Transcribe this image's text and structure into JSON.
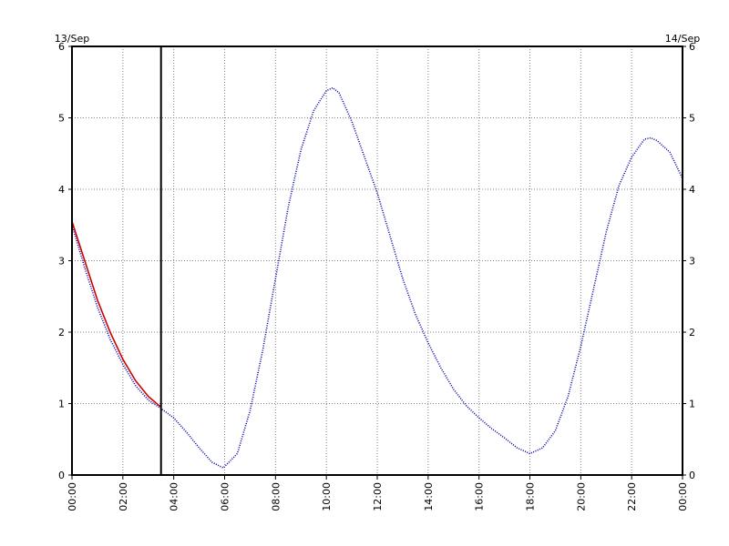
{
  "chart_data": {
    "type": "line",
    "x_unit": "hours",
    "xlim": [
      0,
      24
    ],
    "ylim": [
      0,
      6
    ],
    "grid": true,
    "date_labels": {
      "start": "13/Sep",
      "end": "14/Sep"
    },
    "x_ticks": [
      0,
      2,
      4,
      6,
      8,
      10,
      12,
      14,
      16,
      18,
      20,
      22,
      24
    ],
    "x_tick_labels": [
      "00:00",
      "02:00",
      "04:00",
      "06:00",
      "08:00",
      "10:00",
      "12:00",
      "14:00",
      "16:00",
      "18:00",
      "20:00",
      "22:00",
      "00:00"
    ],
    "y_ticks": [
      0,
      1,
      2,
      3,
      4,
      5,
      6
    ],
    "y_tick_labels": [
      "0",
      "1",
      "2",
      "3",
      "4",
      "5",
      "6"
    ],
    "current_time_marker": 3.5,
    "series": [
      {
        "color": "#0000aa",
        "style": "dotted",
        "points": [
          [
            0.0,
            3.5
          ],
          [
            0.5,
            2.9
          ],
          [
            1.0,
            2.35
          ],
          [
            1.5,
            1.9
          ],
          [
            2.0,
            1.55
          ],
          [
            2.5,
            1.25
          ],
          [
            3.0,
            1.05
          ],
          [
            3.5,
            0.93
          ],
          [
            4.0,
            0.8
          ],
          [
            4.5,
            0.6
          ],
          [
            5.0,
            0.38
          ],
          [
            5.5,
            0.18
          ],
          [
            5.95,
            0.1
          ],
          [
            6.5,
            0.3
          ],
          [
            7.0,
            0.9
          ],
          [
            7.5,
            1.75
          ],
          [
            8.0,
            2.75
          ],
          [
            8.5,
            3.75
          ],
          [
            9.0,
            4.55
          ],
          [
            9.5,
            5.1
          ],
          [
            10.0,
            5.38
          ],
          [
            10.25,
            5.42
          ],
          [
            10.5,
            5.35
          ],
          [
            11.0,
            4.95
          ],
          [
            11.5,
            4.45
          ],
          [
            12.0,
            3.95
          ],
          [
            12.5,
            3.35
          ],
          [
            13.0,
            2.75
          ],
          [
            13.5,
            2.25
          ],
          [
            14.0,
            1.85
          ],
          [
            14.5,
            1.5
          ],
          [
            15.0,
            1.2
          ],
          [
            15.5,
            0.97
          ],
          [
            16.0,
            0.8
          ],
          [
            16.5,
            0.65
          ],
          [
            17.0,
            0.52
          ],
          [
            17.5,
            0.38
          ],
          [
            18.0,
            0.3
          ],
          [
            18.5,
            0.38
          ],
          [
            19.0,
            0.62
          ],
          [
            19.5,
            1.1
          ],
          [
            20.0,
            1.8
          ],
          [
            20.5,
            2.6
          ],
          [
            21.0,
            3.4
          ],
          [
            21.5,
            4.05
          ],
          [
            22.0,
            4.45
          ],
          [
            22.5,
            4.7
          ],
          [
            22.75,
            4.72
          ],
          [
            23.0,
            4.68
          ],
          [
            23.5,
            4.52
          ],
          [
            24.0,
            4.15
          ]
        ]
      },
      {
        "color": "#cc0000",
        "style": "solid",
        "points": [
          [
            0.0,
            3.55
          ],
          [
            0.5,
            3.0
          ],
          [
            1.0,
            2.45
          ],
          [
            1.5,
            2.0
          ],
          [
            2.0,
            1.62
          ],
          [
            2.5,
            1.32
          ],
          [
            3.0,
            1.1
          ],
          [
            3.5,
            0.95
          ]
        ]
      }
    ]
  }
}
